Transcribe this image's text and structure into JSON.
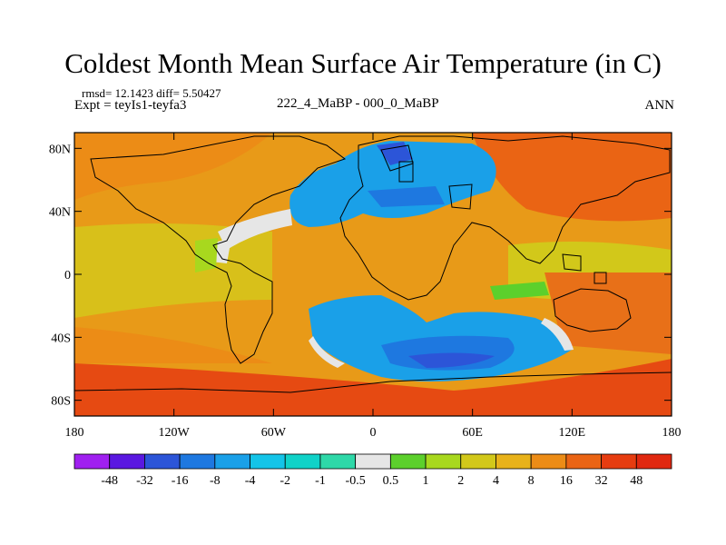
{
  "chart_data": {
    "type": "heatmap",
    "title": "Coldest Month Mean Surface Air Temperature (in C)",
    "subtitle_left_line1": "rmsd= 12.1423 diff= 5.50427",
    "subtitle_left_line2": "Expt = teyIs1-teyfa3",
    "subtitle_center": "222_4_MaBP - 000_0_MaBP",
    "subtitle_right": "ANN",
    "x_ticks": [
      "180",
      "120W",
      "60W",
      "0",
      "60E",
      "120E",
      "180"
    ],
    "y_ticks": [
      "80N",
      "40N",
      "0",
      "40S",
      "80S"
    ],
    "xlim": [
      -180,
      180
    ],
    "ylim": [
      -90,
      90
    ],
    "colorbar": {
      "labels": [
        "-48",
        "-32",
        "-16",
        "-8",
        "-4",
        "-2",
        "-1",
        "-0.5",
        "0.5",
        "1",
        "2",
        "4",
        "8",
        "16",
        "32",
        "48"
      ],
      "colors": [
        "#a020f0",
        "#5a18e0",
        "#2c55d8",
        "#1e78e0",
        "#1aa0e8",
        "#14c4e8",
        "#10d2c8",
        "#2ed8a8",
        "#e6e6e6",
        "#5cd02c",
        "#a8d81e",
        "#d2c81a",
        "#e8b21a",
        "#ec8c16",
        "#ea6414",
        "#e63c10",
        "#e02810"
      ]
    }
  }
}
